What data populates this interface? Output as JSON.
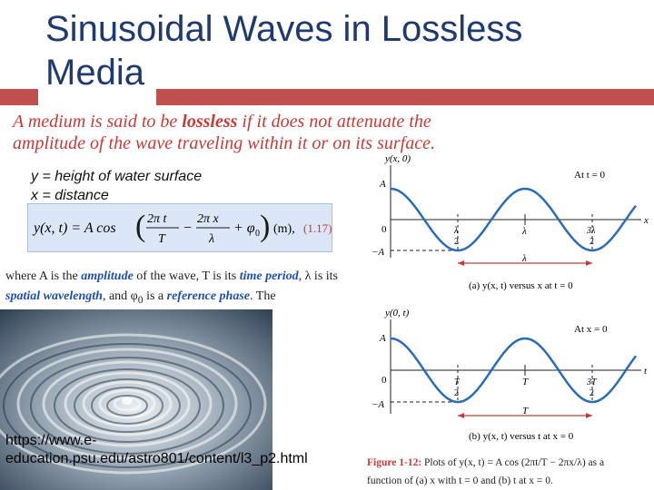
{
  "slide": {
    "title": "Sinusoidal Waves in Lossless Media",
    "lossless_text_1": "A medium is said to be ",
    "lossless_bold": "lossless",
    "lossless_text_2": " if it does not attenuate the amplitude of the wave traveling within it or on its surface.",
    "def_y": "y = height of water surface",
    "def_x": "x = distance",
    "equation": {
      "lhs": "y(x, t) = A cos",
      "term1_num": "2π t",
      "term1_den": "T",
      "minus": "−",
      "term2_num": "2π x",
      "term2_den": "λ",
      "phase": "+ φ",
      "phase_sub": "0",
      "unit": "(m),",
      "number": "(1.17)"
    },
    "desc": {
      "p1": "where  A is the ",
      "amplitude": "amplitude",
      "p2": " of the wave,  T is its ",
      "period": "time period",
      "p3": ", λ is its ",
      "wavelength": "spatial wavelength",
      "p4": ", and φ",
      "p4_sub": "0",
      "p5": " is a ",
      "phase": "reference phase",
      "p6": ".  The"
    },
    "url": "https://www.e-education.psu.edu/astro801/content/l3_p2.html"
  },
  "figure": {
    "top": {
      "yaxis": "y(x, 0)",
      "xaxis": "x",
      "condition": "At t = 0",
      "A": "A",
      "negA": "−A",
      "zero": "0",
      "ticks": [
        "λ/2",
        "λ",
        "3λ/2"
      ],
      "tick_top": [
        "λ",
        "",
        "3λ"
      ],
      "tick_bot": [
        "2",
        "",
        "2"
      ],
      "span": "λ",
      "label": "(a)  y(x, t) versus x at t = 0"
    },
    "bottom": {
      "yaxis": "y(0, t)",
      "xaxis": "t",
      "condition": "At x = 0",
      "A": "A",
      "negA": "−A",
      "zero": "0",
      "tick_top": [
        "T",
        "",
        "3T"
      ],
      "tick_mid": [
        "",
        "T",
        ""
      ],
      "tick_bot": [
        "2",
        "",
        "2"
      ],
      "span": "T",
      "label": "(b)  y(x, t) versus t at x = 0"
    },
    "caption": {
      "fig": "Figure 1-12:",
      "text1": " Plots of  y(x, t) = A cos",
      "frac1n": "2πt",
      "frac1d": "T",
      "minus": " − ",
      "frac2n": "2πx",
      "frac2d": "λ",
      "text2": "  as a",
      "text3": "function of (a) x with t = 0 and (b) t at x = 0."
    }
  },
  "colors": {
    "title": "#1f3a6e",
    "accent_red": "#c0504d",
    "wave_blue": "#2a6db5",
    "highlight_blue": "#1e4fb0"
  }
}
